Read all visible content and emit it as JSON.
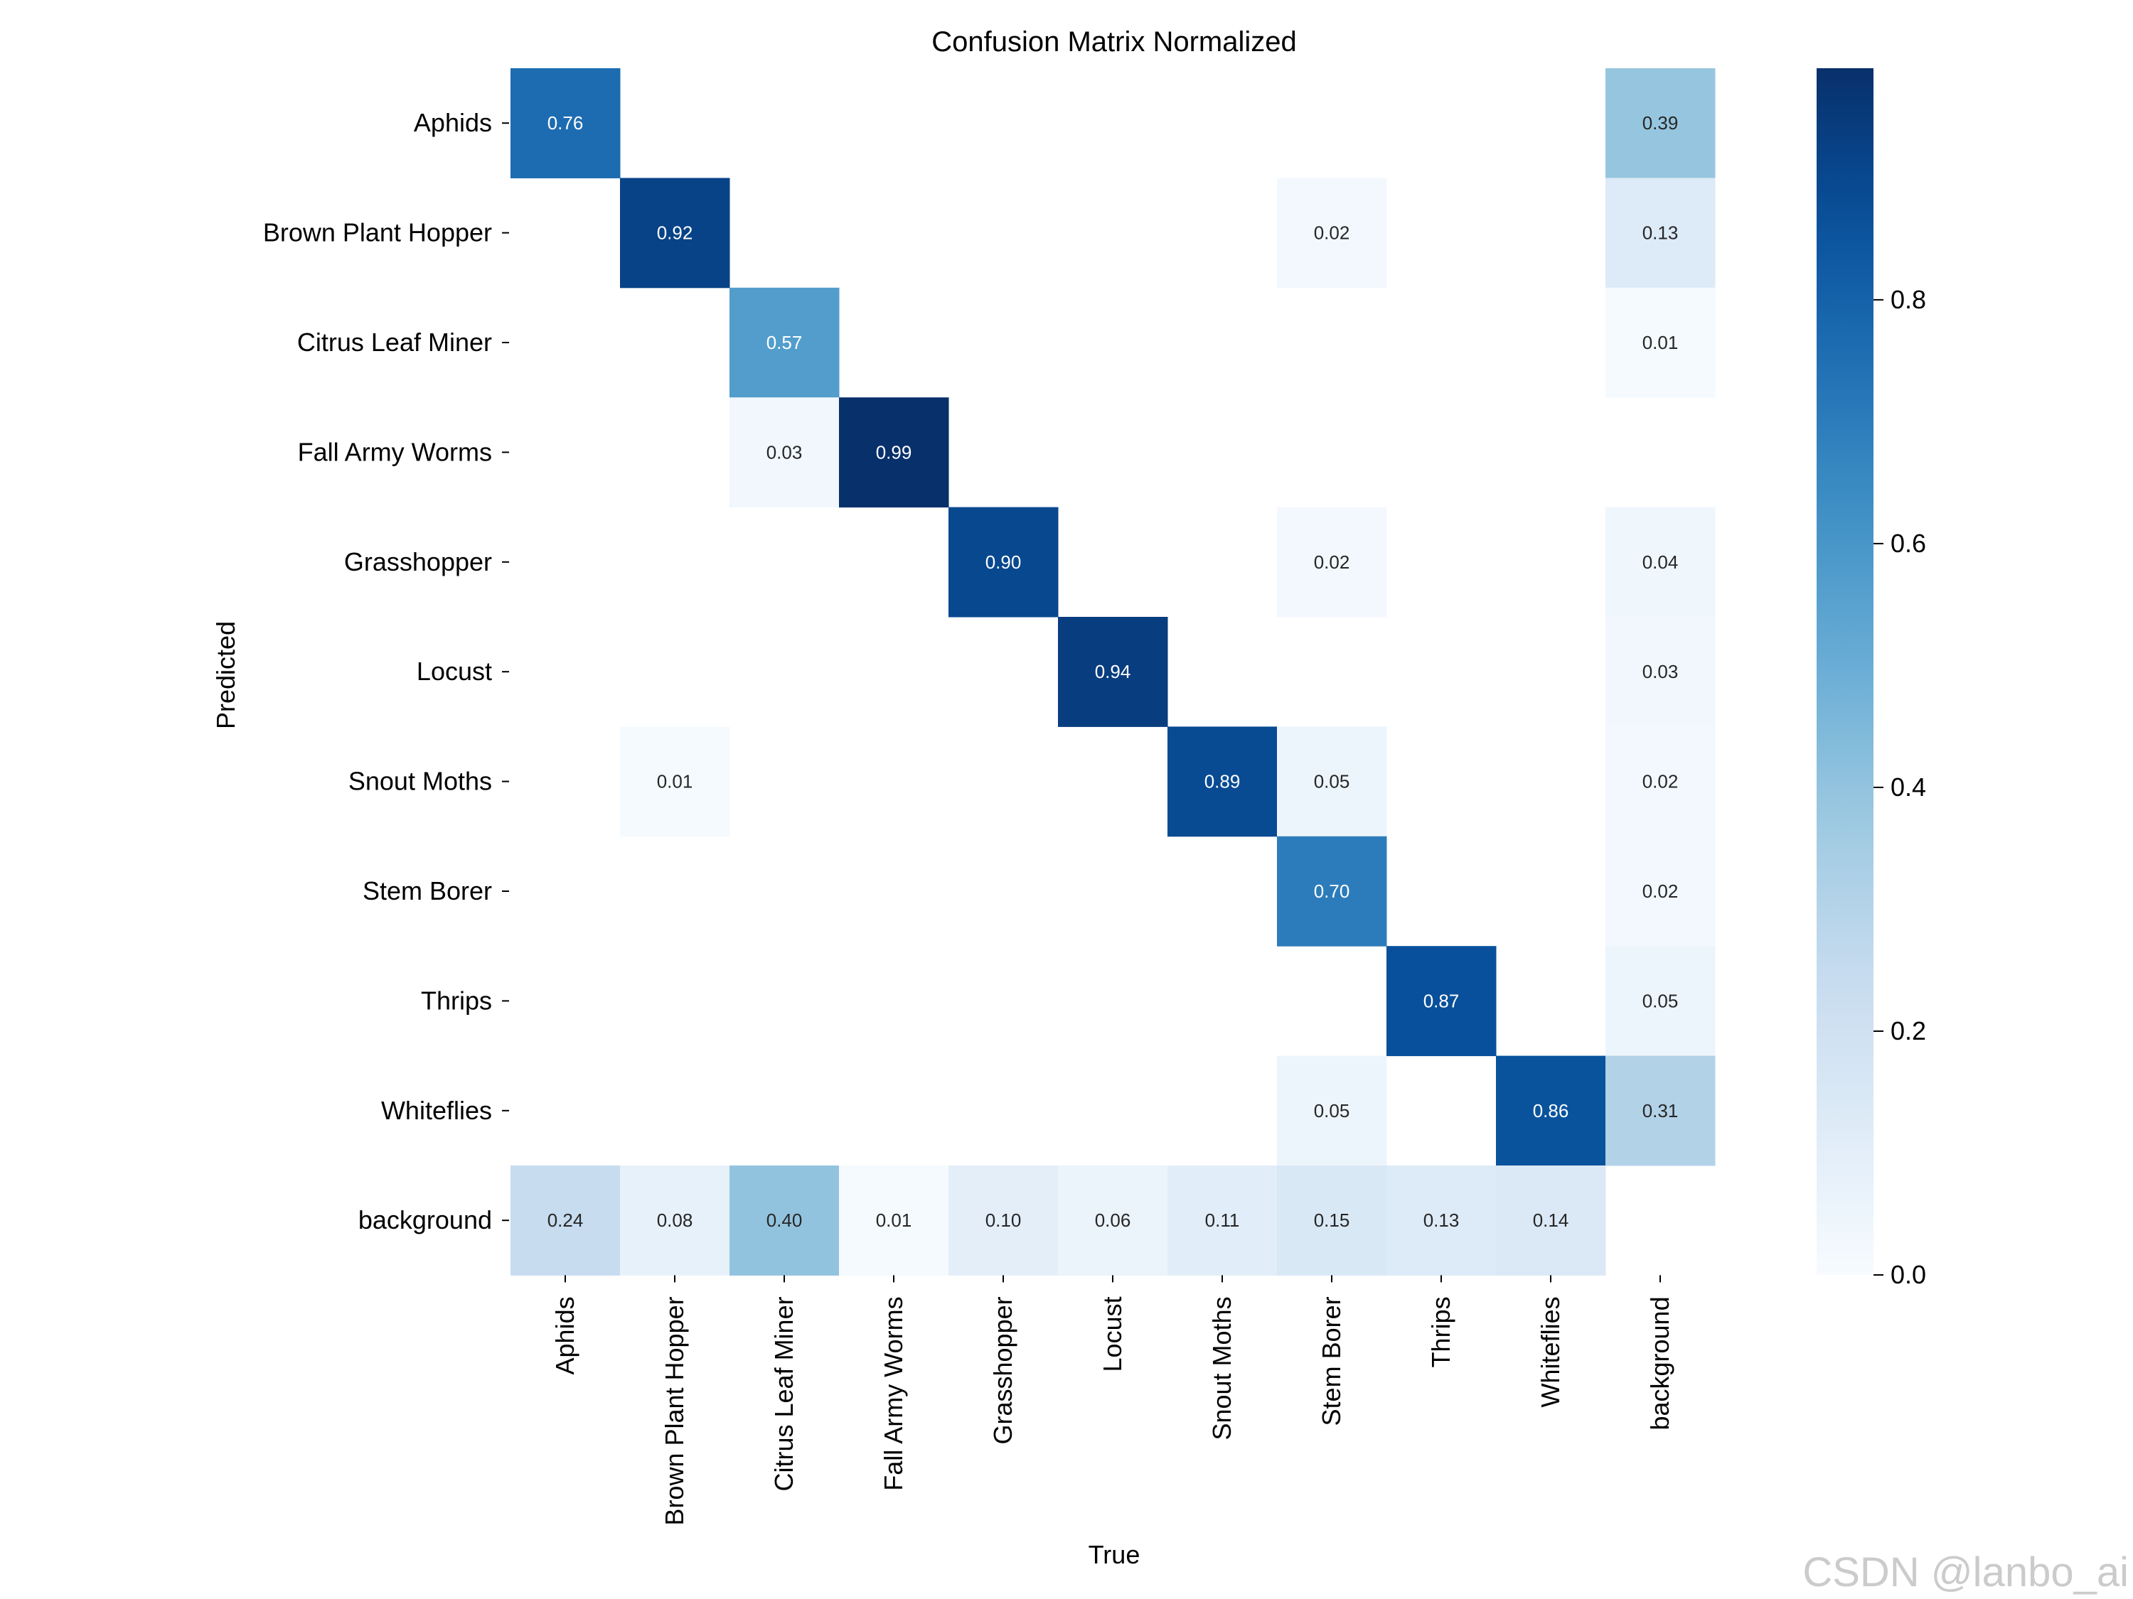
{
  "chart_data": {
    "type": "heatmap",
    "title": "Confusion Matrix Normalized",
    "xlabel": "True",
    "ylabel": "Predicted",
    "x_categories": [
      "Aphids",
      "Brown Plant Hopper",
      "Citrus Leaf Miner",
      "Fall Army Worms",
      "Grasshopper",
      "Locust",
      "Snout Moths",
      "Stem Borer",
      "Thrips",
      "Whiteflies",
      "background"
    ],
    "y_categories": [
      "Aphids",
      "Brown Plant Hopper",
      "Citrus Leaf Miner",
      "Fall Army Worms",
      "Grasshopper",
      "Locust",
      "Snout Moths",
      "Stem Borer",
      "Thrips",
      "Whiteflies",
      "background"
    ],
    "values": [
      [
        0.76,
        null,
        null,
        null,
        null,
        null,
        null,
        null,
        null,
        null,
        0.39
      ],
      [
        null,
        0.92,
        null,
        null,
        null,
        null,
        null,
        0.02,
        null,
        null,
        0.13
      ],
      [
        null,
        null,
        0.57,
        null,
        null,
        null,
        null,
        null,
        null,
        null,
        0.01
      ],
      [
        null,
        null,
        0.03,
        0.99,
        null,
        null,
        null,
        null,
        null,
        null,
        null
      ],
      [
        null,
        null,
        null,
        null,
        0.9,
        null,
        null,
        0.02,
        null,
        null,
        0.04
      ],
      [
        null,
        null,
        null,
        null,
        null,
        0.94,
        null,
        null,
        null,
        null,
        0.03
      ],
      [
        null,
        0.01,
        null,
        null,
        null,
        null,
        0.89,
        0.05,
        null,
        null,
        0.02
      ],
      [
        null,
        null,
        null,
        null,
        null,
        null,
        null,
        0.7,
        null,
        null,
        0.02
      ],
      [
        null,
        null,
        null,
        null,
        null,
        null,
        null,
        null,
        0.87,
        null,
        0.05
      ],
      [
        null,
        null,
        null,
        null,
        null,
        null,
        null,
        0.05,
        null,
        0.86,
        0.31
      ],
      [
        0.24,
        0.08,
        0.4,
        0.01,
        0.1,
        0.06,
        0.11,
        0.15,
        0.13,
        0.14,
        null
      ]
    ],
    "colormap": "Blues",
    "vmin": 0.0,
    "vmax": 0.99,
    "colorbar_ticks": [
      "0.0",
      "0.2",
      "0.4",
      "0.6",
      "0.8"
    ],
    "colorbar_tick_values": [
      0.0,
      0.2,
      0.4,
      0.6,
      0.8
    ]
  },
  "watermark": "CSDN @lanbo_ai"
}
